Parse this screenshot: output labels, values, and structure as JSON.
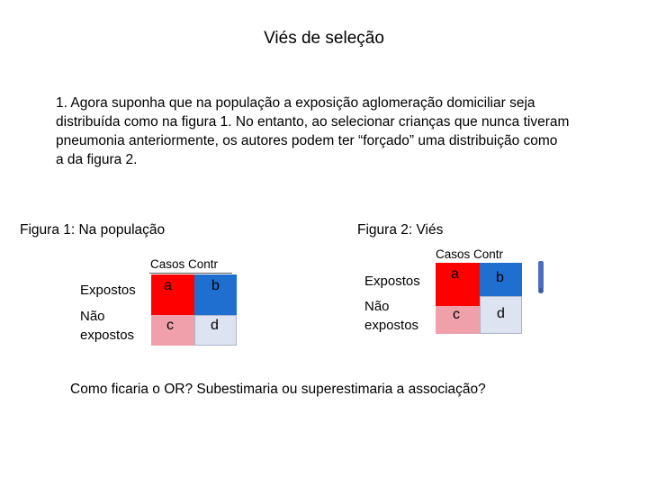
{
  "title": "Viés de seleção",
  "paragraph": {
    "lines": [
      "1.   Agora suponha que na população a exposição aglomeração  domiciliar seja",
      "distribuída como na figura 1. No entanto, ao selecionar crianças que nunca tiveram",
      "pneumonia anteriormente, os autores podem ter “forçado” uma distribuição como",
      "a da figura 2."
    ]
  },
  "figure1": {
    "label": "Figura 1: Na população",
    "header": "Casos   Contr",
    "row_exposed": "Expostos",
    "row_unexposed_1": "Não",
    "row_unexposed_2": "expostos",
    "cells": {
      "a": "a",
      "b": "b",
      "c": "c",
      "d": "d"
    }
  },
  "figure2": {
    "label": "Figura 2: Viés",
    "header": "Casos   Contr",
    "row_exposed": "Expostos",
    "row_unexposed_1": "Não",
    "row_unexposed_2": "expostos",
    "cells": {
      "a": "a",
      "b": "b",
      "c": "c",
      "d": "d"
    }
  },
  "question": "Como ficaria o OR? Subestimaria ou superestimaria a associação?",
  "colors": {
    "cell_a": "#ff0000",
    "cell_b": "#1f6fd0",
    "cell_c": "#f0a0aa",
    "cell_d": "#dde3f1",
    "indicator": "#4a6fc2"
  }
}
